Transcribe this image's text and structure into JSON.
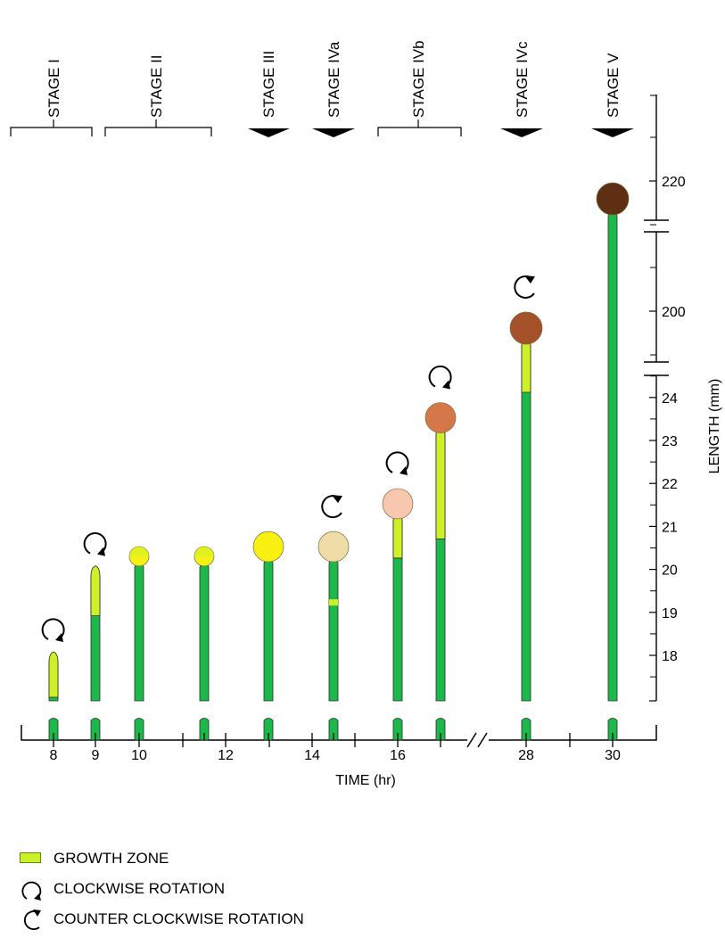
{
  "stages": [
    {
      "label": "STAGE  I",
      "marker": "bracket"
    },
    {
      "label": "STAGE  II",
      "marker": "bracket"
    },
    {
      "label": "STAGE  III",
      "marker": "arrow"
    },
    {
      "label": "STAGE  IVa",
      "marker": "arrow"
    },
    {
      "label": "STAGE  IVb",
      "marker": "bracket"
    },
    {
      "label": "STAGE  IVc",
      "marker": "arrow"
    },
    {
      "label": "STAGE  V",
      "marker": "arrow"
    }
  ],
  "x_axis": {
    "title": "TIME (hr)",
    "tick_labels": [
      "8",
      "9",
      "10",
      "12",
      "14",
      "16",
      "28",
      "30"
    ],
    "break_mark": "//"
  },
  "y_axis": {
    "title": "LENGTH (mm)",
    "tick_labels": [
      "18",
      "19",
      "20",
      "21",
      "22",
      "23",
      "24",
      "200",
      "220"
    ],
    "breaks": 2
  },
  "colors": {
    "stalk": "#1db84a",
    "growth_zone": "#ccf227",
    "outline": "#2a2a2a"
  },
  "sporangiophores": [
    {
      "time": "8",
      "length_mm": 18.0,
      "growth_zone": "tip",
      "head": "none",
      "rotation": "clockwise",
      "head_color": ""
    },
    {
      "time": "9",
      "length_mm": 20.0,
      "growth_zone": "upper",
      "head": "none",
      "rotation": "clockwise",
      "head_color": ""
    },
    {
      "time": "10",
      "length_mm": 20.2,
      "growth_zone": "none",
      "head": "small sporangium",
      "rotation": "none",
      "head_color": "#f5f016"
    },
    {
      "time": "11.5",
      "length_mm": 20.2,
      "growth_zone": "none",
      "head": "small sporangium",
      "rotation": "none",
      "head_color": "#f5f016"
    },
    {
      "time": "13",
      "length_mm": 20.3,
      "growth_zone": "none",
      "head": "sporangium",
      "rotation": "none",
      "head_color": "#f7f010"
    },
    {
      "time": "14.5",
      "length_mm": 20.3,
      "growth_zone": "band",
      "head": "sporangium",
      "rotation": "counter clockwise",
      "head_color": "#f0dca6"
    },
    {
      "time": "16",
      "length_mm": 21.3,
      "growth_zone": "below head",
      "head": "sporangium",
      "rotation": "clockwise",
      "head_color": "#f7c7b0"
    },
    {
      "time": "17",
      "length_mm": 23.3,
      "growth_zone": "below head",
      "head": "sporangium",
      "rotation": "clockwise",
      "head_color": "#d4784a"
    },
    {
      "time": "28",
      "length_mm": 200,
      "growth_zone": "below head",
      "head": "sporangium",
      "rotation": "counter clockwise",
      "head_color": "#a5522a"
    },
    {
      "time": "30",
      "length_mm": 220,
      "growth_zone": "none",
      "head": "sporangium",
      "rotation": "none",
      "head_color": "#5e2f13"
    }
  ],
  "legend": {
    "growth_zone": "GROWTH  ZONE",
    "clockwise": "CLOCKWISE ROTATION",
    "counter_clockwise": "COUNTER CLOCKWISE ROTATION"
  }
}
